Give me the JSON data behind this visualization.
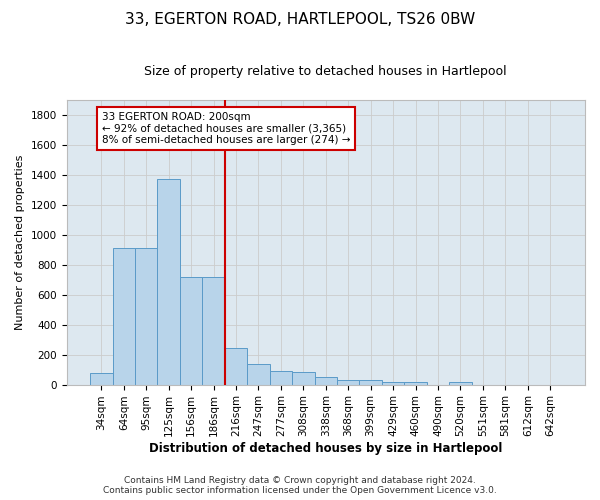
{
  "title": "33, EGERTON ROAD, HARTLEPOOL, TS26 0BW",
  "subtitle": "Size of property relative to detached houses in Hartlepool",
  "xlabel": "Distribution of detached houses by size in Hartlepool",
  "ylabel": "Number of detached properties",
  "footer_line1": "Contains HM Land Registry data © Crown copyright and database right 2024.",
  "footer_line2": "Contains public sector information licensed under the Open Government Licence v3.0.",
  "categories": [
    "34sqm",
    "64sqm",
    "95sqm",
    "125sqm",
    "156sqm",
    "186sqm",
    "216sqm",
    "247sqm",
    "277sqm",
    "308sqm",
    "338sqm",
    "368sqm",
    "399sqm",
    "429sqm",
    "460sqm",
    "490sqm",
    "520sqm",
    "551sqm",
    "581sqm",
    "612sqm",
    "642sqm"
  ],
  "values": [
    80,
    910,
    910,
    1370,
    720,
    720,
    245,
    140,
    90,
    85,
    50,
    30,
    30,
    20,
    15,
    0,
    20,
    0,
    0,
    0,
    0
  ],
  "bar_color": "#b8d4ea",
  "bar_edge_color": "#5a9ac8",
  "grid_color": "#cccccc",
  "bg_color": "#dde8f0",
  "vline_color": "#cc0000",
  "annotation_text": "33 EGERTON ROAD: 200sqm\n← 92% of detached houses are smaller (3,365)\n8% of semi-detached houses are larger (274) →",
  "annotation_box_color": "#cc0000",
  "ylim": [
    0,
    1900
  ],
  "yticks": [
    0,
    200,
    400,
    600,
    800,
    1000,
    1200,
    1400,
    1600,
    1800
  ],
  "title_fontsize": 11,
  "subtitle_fontsize": 9,
  "xlabel_fontsize": 8.5,
  "ylabel_fontsize": 8,
  "tick_fontsize": 7.5,
  "annotation_fontsize": 7.5,
  "footer_fontsize": 6.5
}
